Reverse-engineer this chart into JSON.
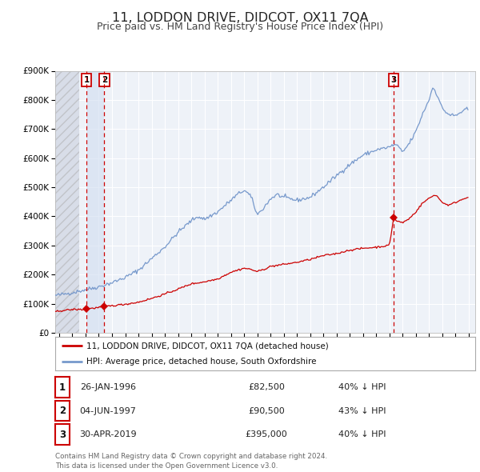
{
  "title": "11, LODDON DRIVE, DIDCOT, OX11 7QA",
  "subtitle": "Price paid vs. HM Land Registry's House Price Index (HPI)",
  "title_fontsize": 11.5,
  "subtitle_fontsize": 9,
  "background_color": "#ffffff",
  "plot_bg_color": "#eef2f8",
  "grid_color": "#ffffff",
  "ylim": [
    0,
    900000
  ],
  "yticks": [
    0,
    100000,
    200000,
    300000,
    400000,
    500000,
    600000,
    700000,
    800000,
    900000
  ],
  "ytick_labels": [
    "£0",
    "£100K",
    "£200K",
    "£300K",
    "£400K",
    "£500K",
    "£600K",
    "£700K",
    "£800K",
    "£900K"
  ],
  "xlim_start": 1993.7,
  "xlim_end": 2025.5,
  "red_line_color": "#cc0000",
  "blue_line_color": "#7799cc",
  "vline_color": "#cc0000",
  "marker_color": "#cc0000",
  "legend_label_red": "11, LODDON DRIVE, DIDCOT, OX11 7QA (detached house)",
  "legend_label_blue": "HPI: Average price, detached house, South Oxfordshire",
  "table_entries": [
    {
      "num": "1",
      "date": "26-JAN-1996",
      "price": "£82,500",
      "hpi": "40% ↓ HPI"
    },
    {
      "num": "2",
      "date": "04-JUN-1997",
      "price": "£90,500",
      "hpi": "43% ↓ HPI"
    },
    {
      "num": "3",
      "date": "30-APR-2019",
      "price": "£395,000",
      "hpi": "40% ↓ HPI"
    }
  ],
  "footer_text": "Contains HM Land Registry data © Crown copyright and database right 2024.\nThis data is licensed under the Open Government Licence v3.0.",
  "hpi_anchors_t": [
    1993.7,
    1994.0,
    1995.0,
    1996.0,
    1997.0,
    1998.0,
    1999.0,
    2000.0,
    2001.0,
    2002.0,
    2003.0,
    2004.0,
    2004.5,
    2005.0,
    2006.0,
    2007.0,
    2007.5,
    2008.0,
    2008.5,
    2009.0,
    2009.5,
    2010.0,
    2010.5,
    2011.0,
    2012.0,
    2013.0,
    2014.0,
    2015.0,
    2016.0,
    2017.0,
    2018.0,
    2019.0,
    2019.5,
    2020.0,
    2020.5,
    2021.0,
    2021.5,
    2022.0,
    2022.3,
    2022.7,
    2023.0,
    2023.5,
    2024.0,
    2024.5,
    2025.0
  ],
  "hpi_anchors_v": [
    128000,
    130000,
    138000,
    148000,
    158000,
    172000,
    190000,
    215000,
    255000,
    295000,
    345000,
    385000,
    400000,
    390000,
    415000,
    455000,
    475000,
    490000,
    470000,
    405000,
    430000,
    460000,
    475000,
    465000,
    455000,
    465000,
    500000,
    540000,
    578000,
    610000,
    628000,
    638000,
    648000,
    620000,
    650000,
    690000,
    750000,
    800000,
    845000,
    810000,
    770000,
    750000,
    745000,
    760000,
    770000
  ],
  "prop_anchors_t": [
    1993.7,
    1994.0,
    1995.0,
    1995.9,
    1996.07,
    1996.5,
    1997.0,
    1997.43,
    1998.0,
    1999.0,
    2000.0,
    2001.0,
    2002.0,
    2003.0,
    2004.0,
    2005.0,
    2006.0,
    2007.0,
    2007.5,
    2008.0,
    2008.5,
    2009.0,
    2009.5,
    2010.0,
    2011.0,
    2012.0,
    2013.0,
    2014.0,
    2015.0,
    2016.0,
    2017.0,
    2018.0,
    2019.0,
    2019.33,
    2019.5,
    2020.0,
    2020.5,
    2021.0,
    2021.5,
    2022.0,
    2022.5,
    2023.0,
    2023.5,
    2024.0,
    2024.5,
    2025.0
  ],
  "prop_anchors_v": [
    72000,
    75000,
    80000,
    80000,
    82500,
    84000,
    87000,
    90500,
    93000,
    98000,
    105000,
    118000,
    133000,
    150000,
    168000,
    175000,
    185000,
    208000,
    215000,
    222000,
    218000,
    210000,
    218000,
    228000,
    235000,
    242000,
    252000,
    265000,
    272000,
    284000,
    290000,
    294000,
    300000,
    395000,
    385000,
    378000,
    392000,
    415000,
    445000,
    462000,
    475000,
    448000,
    438000,
    448000,
    458000,
    468000
  ],
  "trans_t": [
    1996.069,
    1997.421,
    2019.329
  ],
  "trans_v": [
    82500,
    90500,
    395000
  ],
  "trans_labels": [
    "1",
    "2",
    "3"
  ],
  "vline_x": [
    1996.069,
    1997.421,
    2019.329
  ],
  "hatch_end": 1995.5,
  "shade_start": 1996.069,
  "shade_end": 1997.421
}
